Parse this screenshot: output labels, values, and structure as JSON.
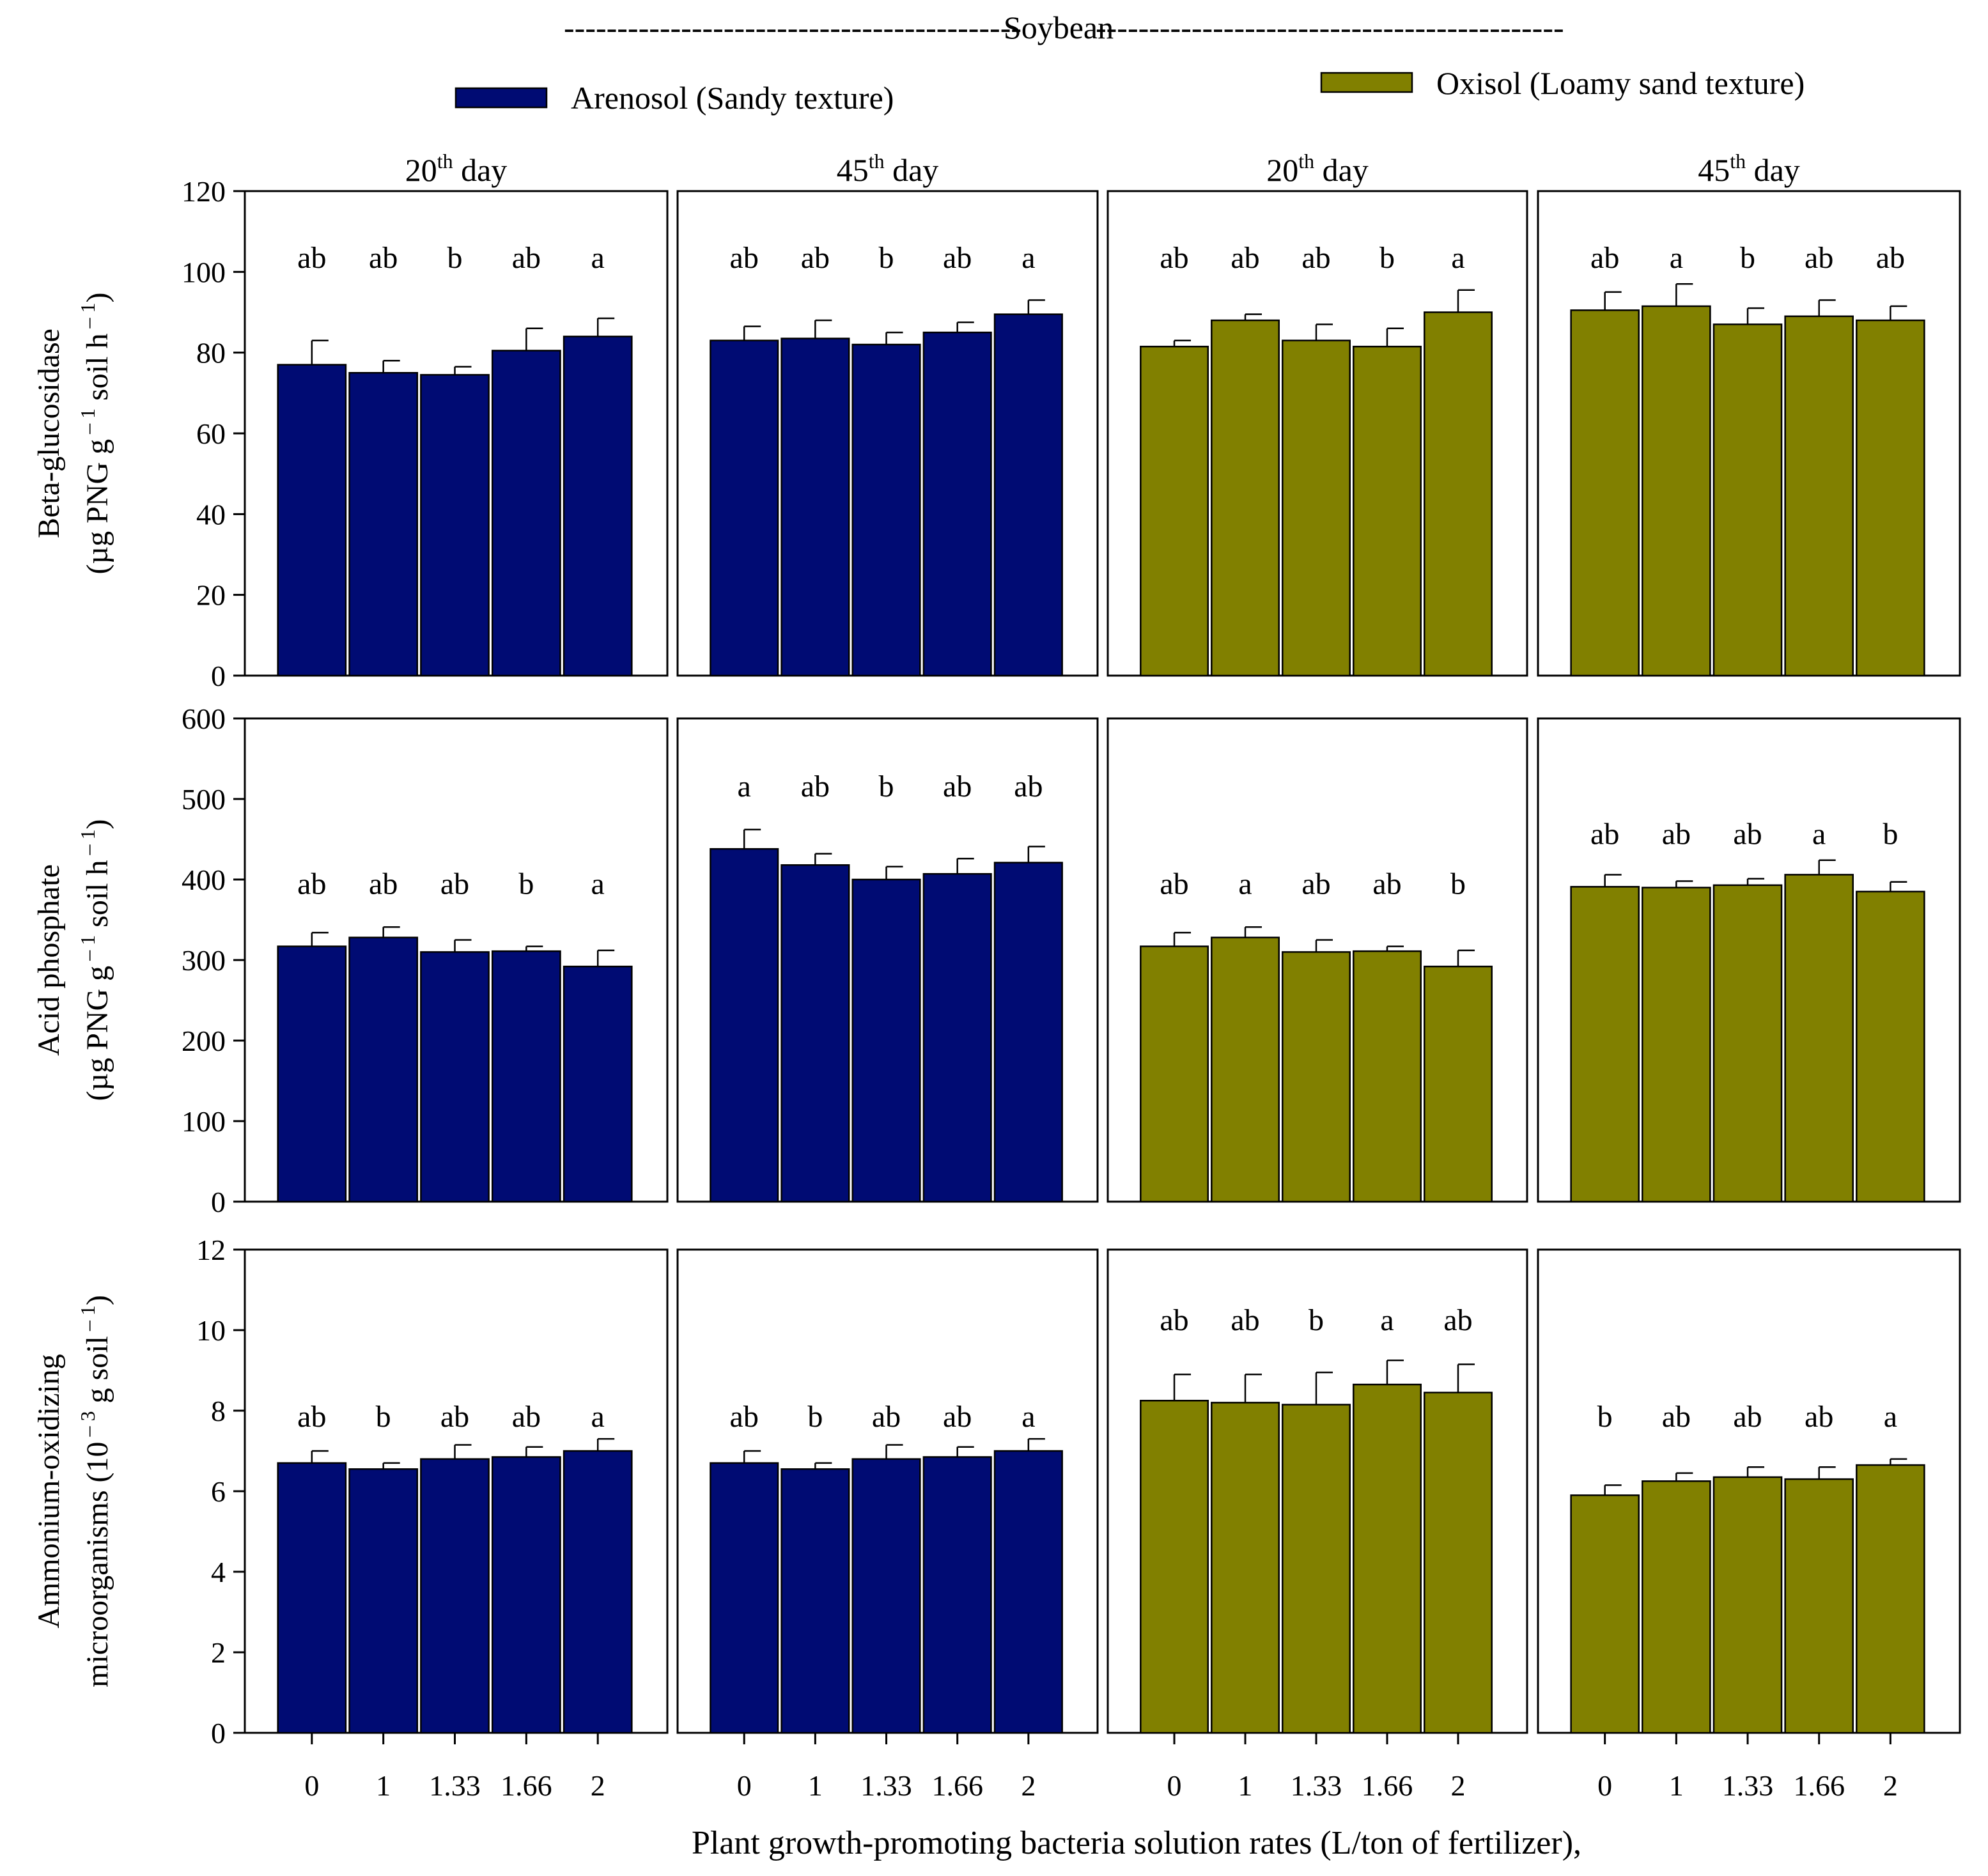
{
  "figure_title": "Soybean",
  "colors": {
    "arenosol": "#000b73",
    "oxisol": "#818000"
  },
  "legend": {
    "arenosol": "Arenosol (Sandy texture)",
    "oxisol": "Oxisol (Loamy sand texture)"
  },
  "x_axis_label": "Plant growth-promoting bacteria solution rates (L/ton of fertilizer),",
  "chart_data": {
    "type": "bar",
    "categories": [
      "0",
      "1",
      "1.33",
      "1.66",
      "2"
    ],
    "columns": [
      {
        "title_base": "20",
        "title_sup": "th",
        "title_rest": " day",
        "soil": "arenosol"
      },
      {
        "title_base": "45",
        "title_sup": "th",
        "title_rest": " day",
        "soil": "arenosol"
      },
      {
        "title_base": "20",
        "title_sup": "th",
        "title_rest": " day",
        "soil": "oxisol"
      },
      {
        "title_base": "45",
        "title_sup": "th",
        "title_rest": " day",
        "soil": "oxisol"
      }
    ],
    "rows": [
      {
        "ylabel_line1": "Beta-glucosidase",
        "ylabel_line2": {
          "a": "(µg PNG g",
          "b": " – 1",
          "c": " soil h",
          "d": " – 1",
          "e": ")"
        },
        "ylim": [
          0,
          120
        ],
        "yticks": [
          0,
          20,
          40,
          60,
          80,
          100,
          120
        ],
        "panels": [
          {
            "values": [
              77,
              75,
              74.5,
              80.5,
              84
            ],
            "errors": [
              6,
              3,
              2,
              5.5,
              4.5
            ],
            "letters": [
              "ab",
              "ab",
              "b",
              "ab",
              "a"
            ],
            "letter_value": 101
          },
          {
            "values": [
              83,
              83.5,
              82,
              85,
              89.5
            ],
            "errors": [
              3.5,
              4.5,
              3,
              2.5,
              3.5
            ],
            "letters": [
              "ab",
              "ab",
              "b",
              "ab",
              "a"
            ],
            "letter_value": 101
          },
          {
            "values": [
              81.5,
              88,
              83,
              81.5,
              90
            ],
            "errors": [
              1.5,
              1.5,
              4,
              4.5,
              5.5
            ],
            "letters": [
              "ab",
              "ab",
              "ab",
              "b",
              "a"
            ],
            "letter_value": 101
          },
          {
            "values": [
              90.5,
              91.5,
              87,
              89,
              88
            ],
            "errors": [
              4.5,
              5.5,
              4,
              4,
              3.5
            ],
            "letters": [
              "ab",
              "a",
              "b",
              "ab",
              "ab"
            ],
            "letter_value": 101
          }
        ]
      },
      {
        "ylabel_line1": "Acid phosphate",
        "ylabel_line2": {
          "a": "(µg PNG g",
          "b": " – 1",
          "c": " soil h",
          "d": " – 1",
          "e": ")"
        },
        "ylim": [
          0,
          600
        ],
        "yticks": [
          0,
          100,
          200,
          300,
          400,
          500,
          600
        ],
        "panels": [
          {
            "values": [
              317,
              328,
              310,
              311,
              292
            ],
            "errors": [
              17,
              13,
              15,
              6,
              20
            ],
            "letters": [
              "ab",
              "ab",
              "ab",
              "b",
              "a"
            ],
            "letter_value": 382
          },
          {
            "values": [
              438,
              418,
              400,
              407,
              421
            ],
            "errors": [
              24,
              14,
              16,
              19,
              20
            ],
            "letters": [
              "a",
              "ab",
              "b",
              "ab",
              "ab"
            ],
            "letter_value": 503
          },
          {
            "values": [
              317,
              328,
              310,
              311,
              292
            ],
            "errors": [
              17,
              13,
              15,
              6,
              20
            ],
            "letters": [
              "ab",
              "a",
              "ab",
              "ab",
              "b"
            ],
            "letter_value": 382
          },
          {
            "values": [
              391,
              390,
              393,
              406,
              385
            ],
            "errors": [
              15,
              8,
              8,
              18,
              12
            ],
            "letters": [
              "ab",
              "ab",
              "ab",
              "a",
              "b"
            ],
            "letter_value": 444
          }
        ]
      },
      {
        "ylabel_line1": "Ammonium-oxidizing",
        "ylabel_line2": {
          "a": "microorganisms (10",
          "b": " – 3",
          "c": " g  soil",
          "d": " – 1",
          "e": ")"
        },
        "ylim": [
          0,
          12
        ],
        "yticks": [
          0,
          2,
          4,
          6,
          8,
          10,
          12
        ],
        "panels": [
          {
            "values": [
              6.7,
              6.55,
              6.8,
              6.85,
              7.0
            ],
            "errors": [
              0.3,
              0.15,
              0.35,
              0.25,
              0.3
            ],
            "letters": [
              "ab",
              "b",
              "ab",
              "ab",
              "a"
            ],
            "letter_value": 7.6
          },
          {
            "values": [
              6.7,
              6.55,
              6.8,
              6.85,
              7.0
            ],
            "errors": [
              0.3,
              0.15,
              0.35,
              0.25,
              0.3
            ],
            "letters": [
              "ab",
              "b",
              "ab",
              "ab",
              "a"
            ],
            "letter_value": 7.6
          },
          {
            "values": [
              8.25,
              8.2,
              8.15,
              8.65,
              8.45
            ],
            "errors": [
              0.65,
              0.7,
              0.8,
              0.6,
              0.7
            ],
            "letters": [
              "ab",
              "ab",
              "b",
              "a",
              "ab"
            ],
            "letter_value": 10.0
          },
          {
            "values": [
              5.9,
              6.25,
              6.35,
              6.3,
              6.65
            ],
            "errors": [
              0.25,
              0.2,
              0.25,
              0.3,
              0.15
            ],
            "letters": [
              "b",
              "ab",
              "ab",
              "ab",
              "a"
            ],
            "letter_value": 7.6
          }
        ]
      }
    ]
  }
}
